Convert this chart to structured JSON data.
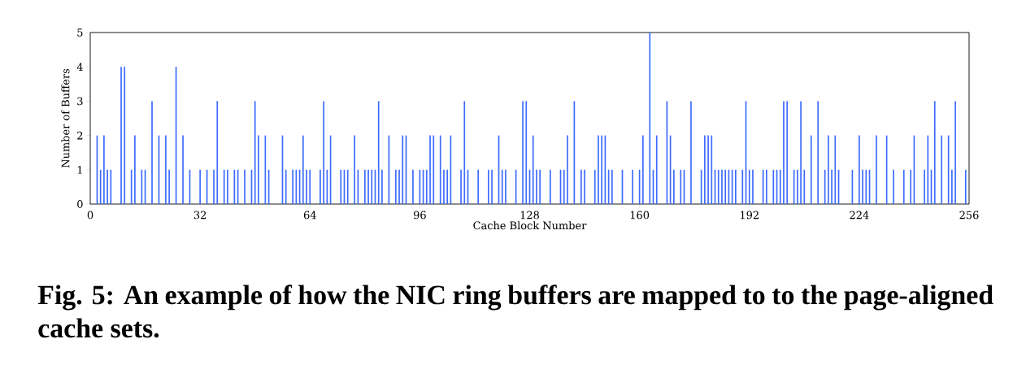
{
  "chart_data": {
    "type": "bar",
    "xlabel": "Cache Block Number",
    "ylabel": "Number of Buffers",
    "color": "#3d6bff",
    "x": [
      2,
      3,
      4,
      5,
      6,
      9,
      10,
      12,
      13,
      15,
      16,
      18,
      20,
      22,
      23,
      25,
      27,
      29,
      32,
      34,
      36,
      37,
      39,
      40,
      42,
      43,
      45,
      47,
      48,
      49,
      51,
      52,
      56,
      57,
      59,
      60,
      61,
      62,
      63,
      64,
      67,
      68,
      69,
      70,
      73,
      74,
      75,
      77,
      78,
      80,
      81,
      82,
      83,
      84,
      85,
      87,
      89,
      90,
      91,
      92,
      94,
      96,
      97,
      98,
      99,
      100,
      102,
      103,
      104,
      105,
      108,
      109,
      110,
      113,
      116,
      117,
      119,
      120,
      121,
      124,
      126,
      127,
      128,
      129,
      130,
      131,
      134,
      137,
      138,
      139,
      141,
      143,
      144,
      147,
      148,
      149,
      150,
      151,
      152,
      155,
      158,
      160,
      161,
      163,
      164,
      165,
      168,
      169,
      170,
      172,
      173,
      175,
      178,
      179,
      180,
      181,
      182,
      183,
      184,
      185,
      186,
      187,
      188,
      190,
      191,
      192,
      193,
      196,
      197,
      199,
      200,
      201,
      202,
      203,
      205,
      206,
      207,
      208,
      210,
      212,
      214,
      215,
      216,
      217,
      218,
      222,
      224,
      225,
      226,
      227,
      229,
      232,
      234,
      237,
      239,
      240,
      243,
      244,
      245,
      246,
      248,
      250,
      251,
      252,
      255
    ],
    "values": [
      2,
      1,
      2,
      1,
      1,
      4,
      4,
      1,
      2,
      1,
      1,
      3,
      2,
      2,
      1,
      4,
      2,
      1,
      1,
      1,
      1,
      3,
      1,
      1,
      1,
      1,
      1,
      1,
      3,
      2,
      2,
      1,
      2,
      1,
      1,
      1,
      1,
      2,
      1,
      1,
      1,
      3,
      1,
      2,
      1,
      1,
      1,
      2,
      1,
      1,
      1,
      1,
      1,
      3,
      1,
      2,
      1,
      1,
      2,
      2,
      1,
      1,
      1,
      1,
      2,
      2,
      2,
      1,
      1,
      2,
      1,
      3,
      1,
      1,
      1,
      1,
      2,
      1,
      1,
      1,
      3,
      3,
      1,
      2,
      1,
      1,
      1,
      1,
      1,
      2,
      3,
      1,
      1,
      1,
      2,
      2,
      2,
      1,
      1,
      1,
      1,
      1,
      2,
      5,
      1,
      2,
      3,
      2,
      1,
      1,
      1,
      3,
      1,
      2,
      2,
      2,
      1,
      1,
      1,
      1,
      1,
      1,
      1,
      1,
      3,
      1,
      1,
      1,
      1,
      1,
      1,
      1,
      3,
      3,
      1,
      1,
      3,
      1,
      2,
      3,
      1,
      2,
      1,
      2,
      1,
      1,
      2,
      1,
      1,
      1,
      2,
      2,
      1,
      1,
      1,
      2,
      1,
      2,
      1,
      3,
      2,
      2,
      1,
      3,
      1
    ],
    "xlim": [
      0,
      256
    ],
    "ylim": [
      0,
      5
    ],
    "xticks": [
      0,
      32,
      64,
      96,
      128,
      160,
      192,
      224,
      256
    ],
    "yticks": [
      0,
      1,
      2,
      3,
      4,
      5
    ],
    "annotations": [
      "Fig. 5: An example of how the NIC ring buffers are mapped to to the page-aligned cache sets."
    ]
  }
}
